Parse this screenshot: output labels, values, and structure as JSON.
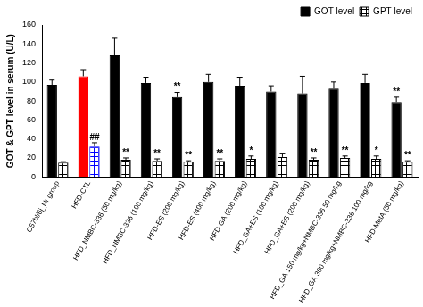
{
  "chart_data": {
    "type": "bar",
    "y_label": "GOT & GPT level in serum (U/L)",
    "categories": [
      "C57bl/6j_Nr group",
      "HFD-CTL",
      "HFD_NMBC-336 (50 mg/kg)",
      "HFD_NMBC-336 (100 mg/kg)",
      "HFD-ES (200 mg/kg)",
      "HFD-ES (400 mg/kg)",
      "HFD-GA (200 mg/kg)",
      "HFD_GA+ES (100 mg/kg)",
      "HFD_GA+ES (200 mg/kg)",
      "HFD_GA 150 mg/kg+NMBC-336 50 mg/kg",
      "HFD_GA 300 mg/kg+NMBC-336 100 mg/kg",
      "HFD-MetA (50 mg/kg)"
    ],
    "series": [
      {
        "name": "GOT level",
        "color": "#000000",
        "colors": [
          "#000000",
          "#ff0000",
          "#000000",
          "#000000",
          "#000000",
          "#000000",
          "#000000",
          "#000000",
          "#000000",
          "#000000",
          "#000000",
          "#000000"
        ],
        "values": [
          97,
          106,
          128,
          99,
          84,
          100,
          96,
          90,
          88,
          93,
          99,
          79
        ],
        "errors": [
          5,
          7,
          18,
          6,
          5,
          8,
          9,
          6,
          18,
          7,
          9,
          5
        ],
        "marks": [
          null,
          null,
          null,
          null,
          "**",
          null,
          null,
          null,
          null,
          null,
          null,
          "**"
        ]
      },
      {
        "name": "GPT level",
        "color": "#000000",
        "colors": [
          "#000000",
          "#0000ff",
          "#000000",
          "#000000",
          "#000000",
          "#000000",
          "#000000",
          "#000000",
          "#000000",
          "#000000",
          "#000000",
          "#000000"
        ],
        "values": [
          15,
          32,
          18,
          17,
          16,
          17,
          19,
          21,
          18,
          20,
          19,
          16
        ],
        "errors": [
          1,
          4,
          2,
          2,
          1,
          2,
          3,
          4,
          2,
          2,
          3,
          1
        ],
        "marks": [
          null,
          "##",
          "**",
          "**",
          "**",
          "**",
          "*",
          null,
          "**",
          "**",
          "*",
          "**"
        ]
      }
    ],
    "ylim": [
      0,
      160
    ],
    "yticks": [
      0,
      20,
      40,
      60,
      80,
      100,
      120,
      140,
      160
    ],
    "grid": false,
    "legend": "top-right"
  }
}
